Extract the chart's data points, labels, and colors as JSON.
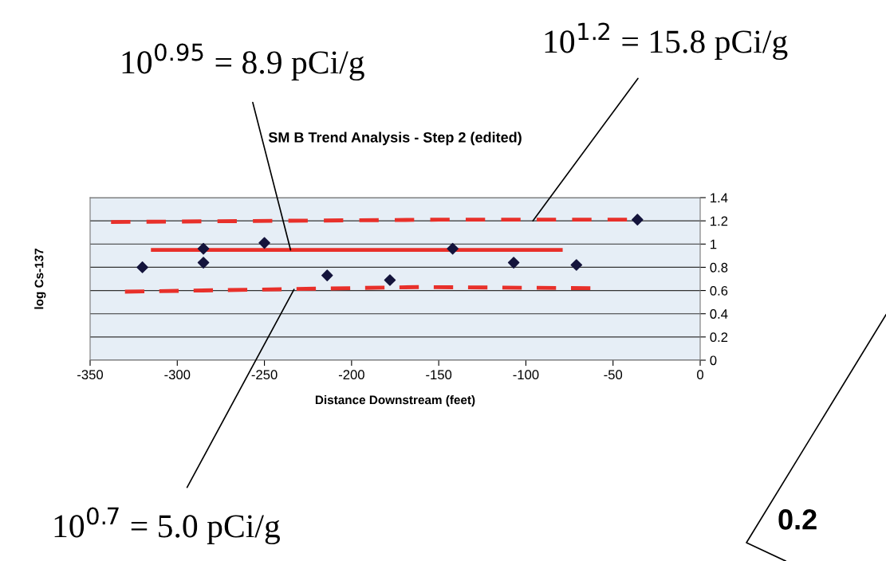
{
  "chart_data": {
    "type": "scatter",
    "title": "SM B Trend Analysis - Step 2 (edited)",
    "xlabel": "Distance Downstream (feet)",
    "ylabel": "log Cs-137",
    "x": [
      -320,
      -285,
      -285,
      -250,
      -214,
      -178,
      -142,
      -107,
      -71,
      -36
    ],
    "series": [
      {
        "color": "#14143c",
        "marker": "diamond",
        "values": [
          0.8,
          0.96,
          0.84,
          1.01,
          0.73,
          0.69,
          0.96,
          0.84,
          0.82,
          1.21
        ]
      },
      {
        "type": "line",
        "color": "#e8302a",
        "line_style": "dashed",
        "x": [
          -338,
          -150,
          -42
        ],
        "values": [
          1.19,
          1.21,
          1.21
        ]
      },
      {
        "type": "line",
        "color": "#e8302a",
        "line_style": "solid",
        "x": [
          -314,
          -80
        ],
        "values": [
          0.95,
          0.95
        ]
      },
      {
        "type": "line",
        "color": "#e8302a",
        "line_style": "dashed",
        "x": [
          -330,
          -160,
          -63
        ],
        "values": [
          0.59,
          0.63,
          0.62
        ]
      }
    ],
    "xlim": [
      -350,
      0
    ],
    "ylim": [
      0,
      1.4
    ],
    "xticks": [
      -350,
      -300,
      -250,
      -200,
      -150,
      -100,
      -50,
      0
    ],
    "yticks": [
      0,
      0.2,
      0.4,
      0.6,
      0.8,
      1,
      1.2,
      1.4
    ],
    "grid": "y",
    "legend": false,
    "annotations": [
      {
        "text": "10$^{0.95}$ = 8.9 pCi/g",
        "x": -235,
        "y": 0.95
      },
      {
        "text": "10$^{1.2}$ = 15.8 pCi/g",
        "x": -96,
        "y": 1.2
      },
      {
        "text": "10$^{0.7}$ = 5.0 pCi/g",
        "x": -233,
        "y": 0.61
      },
      "0.2"
    ]
  }
}
